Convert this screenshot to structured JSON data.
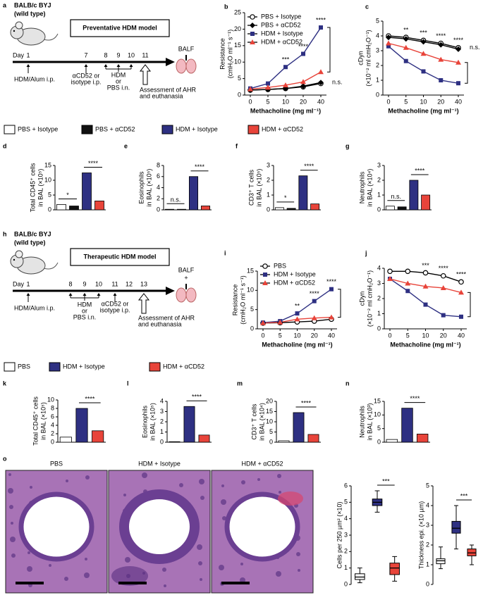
{
  "schemes": [
    {
      "letter": "a",
      "strain": [
        "BALB/c BYJ",
        "(wild type)"
      ],
      "model": "Preventative HDM model",
      "day_label": "Day",
      "days": [
        1,
        7,
        8,
        9,
        10,
        11
      ],
      "events": [
        [
          "HDM/Alum i.p."
        ],
        [
          "αCD52 or",
          "isotype i.p."
        ],
        [
          "HDM",
          "or",
          "PBS i.n."
        ],
        [
          "Assessment of AHR",
          "and euthanasia"
        ]
      ],
      "sample": [
        "BALF"
      ]
    },
    {
      "letter": "h",
      "strain": [
        "BALB/c BYJ",
        "(wild type)"
      ],
      "model": "Therapeutic HDM model",
      "day_label": "Day",
      "days": [
        1,
        8,
        9,
        10,
        11,
        12,
        13
      ],
      "events": [
        [
          "HDM/Alum i.p."
        ],
        [
          "HDM",
          "or",
          "PBS i.n."
        ],
        [
          "αCD52 or",
          "isotype i.p."
        ],
        [
          "Assessment of AHR",
          "and euthanasia"
        ]
      ],
      "sample": [
        "BALF",
        "+"
      ]
    }
  ],
  "legends": [
    {
      "items": [
        {
          "name": "PBS + Isotype",
          "color": "#ffffff"
        },
        {
          "name": "PBS + αCD52",
          "color": "#111111"
        },
        {
          "name": "HDM + Isotype",
          "color": "#2e3082"
        },
        {
          "name": "HDM + αCD52",
          "color": "#e8443a"
        }
      ]
    },
    {
      "items": [
        {
          "name": "PBS",
          "color": "#ffffff"
        },
        {
          "name": "HDM + Isotype",
          "color": "#2e3082"
        },
        {
          "name": "HDM + αCD52",
          "color": "#e8443a"
        }
      ]
    }
  ],
  "chart_data": [
    {
      "type": "line",
      "panel": "b",
      "ylabel": [
        "Resistance",
        "(cmH₂O ml⁻¹ s⁻¹)"
      ],
      "xlabel": "Methacholine (mg ml⁻¹)",
      "categories": [
        "0",
        "5",
        "10",
        "20",
        "40"
      ],
      "ylim": [
        0,
        25
      ],
      "yticks": [
        0,
        5,
        10,
        15,
        20,
        25
      ],
      "legend": "upper left",
      "series": [
        {
          "name": "PBS + Isotype",
          "color": "#000000",
          "marker": "circle-open",
          "values": [
            1.5,
            1.7,
            2,
            2.5,
            3.5
          ]
        },
        {
          "name": "PBS + αCD52",
          "color": "#000000",
          "marker": "diamond",
          "values": [
            1.5,
            1.7,
            2,
            2.7,
            3.8
          ]
        },
        {
          "name": "HDM + Isotype",
          "color": "#2e3082",
          "marker": "square",
          "values": [
            2,
            3.5,
            8.5,
            12.5,
            20.5
          ]
        },
        {
          "name": "HDM + αCD52",
          "color": "#e8443a",
          "marker": "triangle",
          "values": [
            1.8,
            2.3,
            3,
            4,
            7
          ]
        }
      ],
      "annotations": [
        "***",
        "****",
        "****",
        "n.s."
      ]
    },
    {
      "type": "line",
      "panel": "c",
      "ylabel": [
        "cDyn",
        "(×10⁻² ml cmH₂O⁻¹)"
      ],
      "xlabel": "Methacholine (mg ml⁻¹)",
      "categories": [
        "0",
        "5",
        "10",
        "20",
        "40"
      ],
      "ylim": [
        0,
        5
      ],
      "yticks": [
        0,
        1,
        2,
        3,
        4,
        5
      ],
      "series": [
        {
          "name": "PBS + Isotype",
          "color": "#000000",
          "marker": "circle-open",
          "values": [
            4,
            3.9,
            3.7,
            3.5,
            3.2
          ]
        },
        {
          "name": "PBS + αCD52",
          "color": "#000000",
          "marker": "diamond",
          "values": [
            3.9,
            3.8,
            3.6,
            3.4,
            3.1
          ]
        },
        {
          "name": "HDM + Isotype",
          "color": "#2e3082",
          "marker": "square",
          "values": [
            3.3,
            2.3,
            1.6,
            1,
            0.8
          ]
        },
        {
          "name": "HDM + αCD52",
          "color": "#e8443a",
          "marker": "triangle",
          "values": [
            3.5,
            3.2,
            2.8,
            2.4,
            2.2
          ]
        }
      ],
      "annotations": [
        "**",
        "***",
        "****",
        "****",
        "n.s."
      ]
    },
    {
      "type": "bar",
      "panel": "d",
      "ylabel": [
        "Total CD45⁺ cells",
        "in BAL (×10⁵)"
      ],
      "values": [
        1.8,
        1.3,
        12.5,
        3
      ],
      "colors": [
        "#ffffff",
        "#111111",
        "#2e3082",
        "#e8443a"
      ],
      "ylim": [
        0,
        15
      ],
      "yticks": [
        0,
        5,
        10,
        15
      ],
      "annotations": [
        "*",
        "****"
      ]
    },
    {
      "type": "bar",
      "panel": "e",
      "ylabel": [
        "Eosinophils",
        "in BAL (×10⁵)"
      ],
      "values": [
        0.1,
        0.1,
        6,
        0.7
      ],
      "colors": [
        "#ffffff",
        "#111111",
        "#2e3082",
        "#e8443a"
      ],
      "ylim": [
        0,
        8
      ],
      "yticks": [
        0,
        2,
        4,
        6,
        8
      ],
      "annotations": [
        "n.s.",
        "****"
      ]
    },
    {
      "type": "bar",
      "panel": "f",
      "ylabel": [
        "CD3⁺ T cells",
        "in BAL (×10⁵)"
      ],
      "values": [
        0.15,
        0.1,
        2.3,
        0.4
      ],
      "colors": [
        "#ffffff",
        "#111111",
        "#2e3082",
        "#e8443a"
      ],
      "ylim": [
        0,
        3
      ],
      "yticks": [
        0,
        1,
        2,
        3
      ],
      "annotations": [
        "*",
        "****"
      ]
    },
    {
      "type": "bar",
      "panel": "g",
      "ylabel": [
        "Neutrophils",
        "in BAL (×10⁴)"
      ],
      "values": [
        0.25,
        0.2,
        2,
        1
      ],
      "colors": [
        "#ffffff",
        "#111111",
        "#2e3082",
        "#e8443a"
      ],
      "ylim": [
        0,
        3
      ],
      "yticks": [
        0,
        1,
        2,
        3
      ],
      "annotations": [
        "n.s.",
        "****"
      ]
    },
    {
      "type": "line",
      "panel": "i",
      "ylabel": [
        "Resistance",
        "(cmH₂O ml⁻¹ s⁻¹)"
      ],
      "xlabel": "Methacholine (mg ml⁻¹)",
      "categories": [
        "0",
        "5",
        "10",
        "20",
        "40"
      ],
      "ylim": [
        0,
        15
      ],
      "yticks": [
        0,
        5,
        10,
        15
      ],
      "legend": "upper left",
      "series": [
        {
          "name": "PBS",
          "color": "#000000",
          "marker": "circle-open",
          "values": [
            1.5,
            1.6,
            1.8,
            2,
            2.5
          ]
        },
        {
          "name": "HDM + Isotype",
          "color": "#2e3082",
          "marker": "square",
          "values": [
            1.6,
            2,
            4,
            7.2,
            10.3
          ]
        },
        {
          "name": "HDM + αCD52",
          "color": "#e8443a",
          "marker": "triangle",
          "values": [
            1.5,
            1.7,
            2.5,
            2.8,
            3
          ]
        }
      ],
      "annotations": [
        "**",
        "****",
        "****"
      ]
    },
    {
      "type": "line",
      "panel": "j",
      "ylabel": [
        "cDyn",
        "(×10⁻² ml cmH₂O⁻¹)"
      ],
      "xlabel": "Methacholine (mg ml⁻¹)",
      "categories": [
        "0",
        "5",
        "10",
        "20",
        "40"
      ],
      "ylim": [
        0,
        4
      ],
      "yticks": [
        0,
        1,
        2,
        3,
        4
      ],
      "series": [
        {
          "name": "PBS",
          "color": "#000000",
          "marker": "circle-open",
          "values": [
            3.8,
            3.8,
            3.7,
            3.5,
            3.1
          ]
        },
        {
          "name": "HDM + Isotype",
          "color": "#2e3082",
          "marker": "square",
          "values": [
            3.3,
            2.5,
            1.6,
            0.9,
            0.8
          ]
        },
        {
          "name": "HDM + αCD52",
          "color": "#e8443a",
          "marker": "triangle",
          "values": [
            3.3,
            3,
            2.8,
            2.7,
            2.4
          ]
        }
      ],
      "annotations": [
        "***",
        "****",
        "****"
      ]
    },
    {
      "type": "bar",
      "panel": "k",
      "ylabel": [
        "Total CD45⁺ cells",
        "in BAL (×10⁵)"
      ],
      "values": [
        1.2,
        8,
        2.7
      ],
      "colors": [
        "#ffffff",
        "#2e3082",
        "#e8443a"
      ],
      "ylim": [
        0,
        10
      ],
      "yticks": [
        0,
        2,
        4,
        6,
        8,
        10
      ],
      "annotations": [
        "****"
      ]
    },
    {
      "type": "bar",
      "panel": "l",
      "ylabel": [
        "Eosinophils",
        "in BAL (×10⁵)"
      ],
      "values": [
        0.05,
        3.5,
        0.7
      ],
      "colors": [
        "#ffffff",
        "#2e3082",
        "#e8443a"
      ],
      "ylim": [
        0,
        4
      ],
      "yticks": [
        0,
        1,
        2,
        3,
        4
      ],
      "annotations": [
        "****"
      ]
    },
    {
      "type": "bar",
      "panel": "m",
      "ylabel": [
        "CD3⁺ T cells",
        "in BAL (×10⁴)"
      ],
      "values": [
        0.7,
        14.5,
        3.8
      ],
      "colors": [
        "#ffffff",
        "#2e3082",
        "#e8443a"
      ],
      "ylim": [
        0,
        20
      ],
      "yticks": [
        0,
        5,
        10,
        15,
        20
      ],
      "annotations": [
        "****"
      ]
    },
    {
      "type": "bar",
      "panel": "n",
      "ylabel": [
        "Neutrophils",
        "in BAL (×10³)"
      ],
      "values": [
        1,
        12.5,
        3
      ],
      "colors": [
        "#ffffff",
        "#2e3082",
        "#e8443a"
      ],
      "ylim": [
        0,
        15
      ],
      "yticks": [
        0,
        5,
        10,
        15
      ],
      "annotations": [
        "****"
      ]
    },
    {
      "type": "box",
      "ylabel": [
        "Cells per 250 µm² (×10)"
      ],
      "ylim": [
        0,
        6
      ],
      "yticks": [
        0,
        1,
        2,
        3,
        4,
        5,
        6
      ],
      "series": [
        {
          "color": "#ffffff",
          "min": 0.1,
          "q1": 0.3,
          "median": 0.45,
          "q3": 0.65,
          "max": 1
        },
        {
          "color": "#2e3082",
          "min": 4.4,
          "q1": 4.8,
          "median": 5,
          "q3": 5.2,
          "max": 5.7
        },
        {
          "color": "#e8443a",
          "min": 0.2,
          "q1": 0.6,
          "median": 1,
          "q3": 1.3,
          "max": 1.7
        }
      ],
      "annotations": [
        "***"
      ]
    },
    {
      "type": "box",
      "ylabel": [
        "Thickness epi. (×10 µm)"
      ],
      "ylim": [
        0,
        5
      ],
      "yticks": [
        0,
        1,
        2,
        3,
        4,
        5
      ],
      "series": [
        {
          "color": "#ffffff",
          "min": 0.8,
          "q1": 1.05,
          "median": 1.2,
          "q3": 1.3,
          "max": 1.9
        },
        {
          "color": "#2e3082",
          "min": 1.8,
          "q1": 2.6,
          "median": 2.85,
          "q3": 3.2,
          "max": 4
        },
        {
          "color": "#e8443a",
          "min": 1,
          "q1": 1.45,
          "median": 1.6,
          "q3": 1.8,
          "max": 2
        }
      ],
      "annotations": [
        "***"
      ]
    }
  ],
  "histology": {
    "letter": "o",
    "labels": [
      "PBS",
      "HDM + Isotype",
      "HDM + αCD52"
    ]
  }
}
